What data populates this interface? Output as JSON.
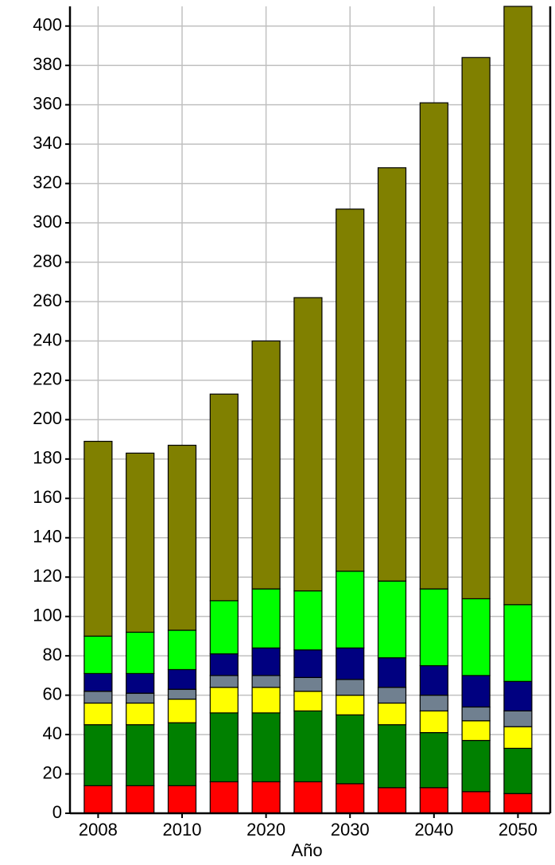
{
  "chart_data": {
    "type": "stacked_bar",
    "x_label": "Año",
    "categories": [
      "2008",
      null,
      "2010",
      null,
      "2020",
      null,
      "2030",
      null,
      "2040",
      null,
      "2050"
    ],
    "series": [
      {
        "color": "#ff0000",
        "values": [
          14,
          14,
          14,
          16,
          16,
          16,
          15,
          13,
          13,
          11,
          10
        ]
      },
      {
        "color": "#008000",
        "values": [
          31,
          31,
          32,
          35,
          35,
          36,
          35,
          32,
          28,
          26,
          23
        ]
      },
      {
        "color": "#ffff00",
        "values": [
          11,
          11,
          12,
          13,
          13,
          10,
          10,
          11,
          11,
          10,
          11
        ]
      },
      {
        "color": "#708090",
        "values": [
          6,
          5,
          5,
          6,
          6,
          7,
          8,
          8,
          8,
          7,
          8
        ]
      },
      {
        "color": "#000080",
        "values": [
          9,
          10,
          10,
          11,
          14,
          14,
          16,
          15,
          15,
          16,
          15
        ]
      },
      {
        "color": "#00ff00",
        "values": [
          19,
          21,
          20,
          27,
          30,
          30,
          39,
          39,
          39,
          39,
          39
        ]
      },
      {
        "color": "#808000",
        "values": [
          99,
          91,
          94,
          105,
          126,
          149,
          184,
          210,
          247,
          275,
          304
        ]
      }
    ],
    "ylim": [
      0,
      410
    ],
    "yticks": [
      0,
      20,
      40,
      60,
      80,
      100,
      120,
      140,
      160,
      180,
      200,
      220,
      240,
      260,
      280,
      300,
      320,
      340,
      360,
      380,
      400
    ],
    "grid": true
  }
}
